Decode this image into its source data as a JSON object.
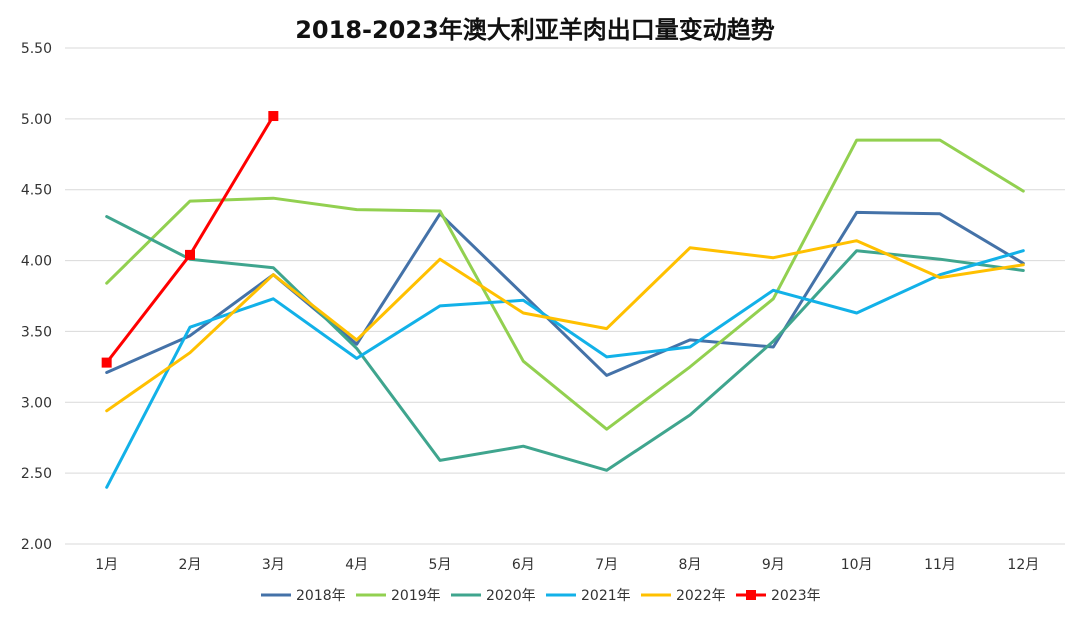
{
  "chart_data": {
    "type": "line",
    "title": "2018-2023年澳大利亚羊肉出口量变动趋势",
    "xlabel": "",
    "ylabel": "",
    "categories": [
      "1月",
      "2月",
      "3月",
      "4月",
      "5月",
      "6月",
      "7月",
      "8月",
      "9月",
      "10月",
      "11月",
      "12月"
    ],
    "ylim": [
      2.0,
      5.5
    ],
    "yticks": [
      "2.00",
      "2.50",
      "3.00",
      "3.50",
      "4.00",
      "4.50",
      "5.00",
      "5.50"
    ],
    "grid": true,
    "legend_position": "bottom",
    "series": [
      {
        "name": "2018年",
        "color": "#4472a8",
        "marker": "none",
        "values": [
          3.21,
          3.47,
          3.9,
          3.41,
          4.33,
          3.76,
          3.19,
          3.44,
          3.39,
          4.34,
          4.33,
          3.98
        ]
      },
      {
        "name": "2019年",
        "color": "#92d050",
        "marker": "none",
        "values": [
          3.84,
          4.42,
          4.44,
          4.36,
          4.35,
          3.29,
          2.81,
          3.25,
          3.73,
          4.85,
          4.85,
          4.49
        ]
      },
      {
        "name": "2020年",
        "color": "#3fa58e",
        "marker": "none",
        "values": [
          4.31,
          4.01,
          3.95,
          3.38,
          2.59,
          2.69,
          2.52,
          2.91,
          3.43,
          4.07,
          4.01,
          3.93
        ]
      },
      {
        "name": "2021年",
        "color": "#12b1e8",
        "marker": "none",
        "values": [
          2.4,
          3.53,
          3.73,
          3.31,
          3.68,
          3.72,
          3.32,
          3.39,
          3.79,
          3.63,
          3.9,
          4.07
        ]
      },
      {
        "name": "2022年",
        "color": "#ffc000",
        "marker": "none",
        "values": [
          2.94,
          3.35,
          3.9,
          3.44,
          4.01,
          3.63,
          3.52,
          4.09,
          4.02,
          4.14,
          3.88,
          3.97
        ]
      },
      {
        "name": "2023年",
        "color": "#ff0000",
        "marker": "square",
        "values": [
          3.28,
          4.04,
          5.02,
          null,
          null,
          null,
          null,
          null,
          null,
          null,
          null,
          null
        ]
      }
    ]
  }
}
